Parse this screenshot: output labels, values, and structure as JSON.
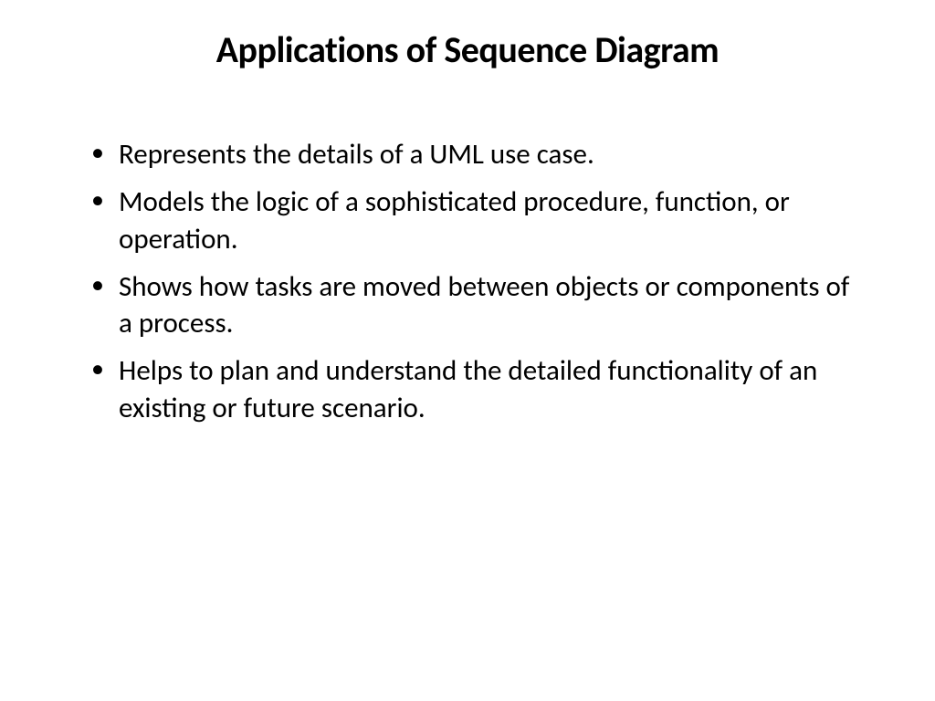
{
  "slide": {
    "title": "Applications of Sequence Diagram",
    "title_fontsize": 40,
    "title_fontweight": "bold",
    "body_fontsize": 31,
    "text_color": "#000000",
    "background_color": "#ffffff",
    "bullets": [
      "Represents the details of a UML use case.",
      "Models the logic of a sophisticated procedure, function, or operation.",
      "Shows how tasks are moved between objects or components of a process.",
      "Helps to plan and understand the detailed functionality of an existing or future scenario."
    ]
  }
}
